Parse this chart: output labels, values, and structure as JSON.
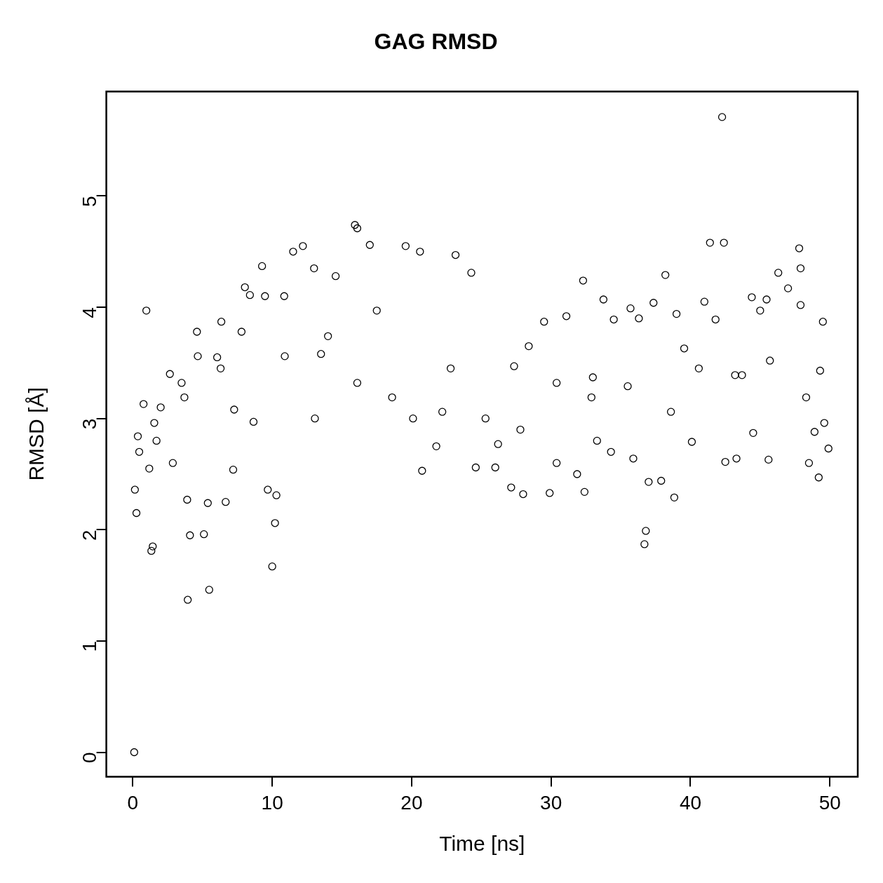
{
  "chart_data": {
    "type": "scatter",
    "title": "GAG RMSD",
    "xlabel": "Time [ns]",
    "ylabel": "RMSD [Å]",
    "xlim": [
      -1.9,
      52
    ],
    "ylim": [
      -0.22,
      5.94
    ],
    "xticks": [
      0,
      10,
      20,
      30,
      40,
      50
    ],
    "yticks": [
      0,
      1,
      2,
      3,
      4,
      5
    ],
    "grid": false,
    "legend": false,
    "marker": "circle",
    "series": [
      {
        "color": "#000000",
        "x": [
          0.1,
          0.15,
          0.26,
          0.36,
          0.46,
          0.77,
          0.97,
          1.33,
          1.43,
          1.18,
          1.54,
          2.0,
          2.66,
          3.5,
          2.87,
          3.94,
          4.1,
          3.9,
          4.6,
          4.66,
          5.1,
          5.48,
          5.38,
          6.05,
          6.35,
          6.66,
          7.27,
          7.2,
          8.04,
          8.4,
          8.66,
          9.27,
          9.48,
          9.68,
          10.0,
          10.2,
          10.3,
          10.86,
          11.5,
          12.2,
          13.0,
          14.55,
          14.0,
          13.06,
          16.1,
          15.93,
          17.0,
          17.5,
          19.57,
          20.6,
          20.75,
          21.77,
          23.15,
          24.28,
          24.6,
          22.8,
          26.0,
          26.2,
          27.14,
          27.35,
          28.0,
          28.4,
          29.5,
          29.9,
          30.4,
          31.1,
          32.3,
          32.4,
          31.87,
          33.0,
          33.3,
          33.76,
          34.5,
          34.3,
          35.7,
          36.3,
          35.9,
          36.7,
          36.8,
          37.0,
          37.35,
          38.2,
          37.9,
          38.84,
          39.0,
          39.55,
          40.1,
          41.0,
          41.4,
          41.8,
          42.27,
          42.4,
          42.5,
          43.2,
          43.3,
          44.4,
          44.5,
          45.0,
          45.46,
          45.6,
          46.3,
          47.0,
          47.8,
          47.9,
          47.9,
          48.5,
          48.9,
          49.2,
          49.3,
          49.5,
          49.6,
          49.9,
          6.3,
          10.9,
          13.5,
          16.1,
          18.6,
          20.1,
          22.2,
          25.3,
          27.8,
          30.4,
          32.9,
          35.5,
          38.6,
          40.6,
          43.7,
          45.7,
          48.3,
          3.7,
          1.7,
          7.8
        ],
        "values": [
          0,
          2.36,
          2.15,
          2.84,
          2.7,
          3.13,
          3.97,
          1.81,
          1.85,
          2.55,
          2.96,
          3.1,
          3.4,
          3.32,
          2.6,
          1.37,
          1.95,
          2.27,
          3.78,
          3.56,
          1.96,
          1.46,
          2.24,
          3.55,
          3.87,
          2.25,
          3.08,
          2.54,
          4.18,
          4.11,
          2.97,
          4.37,
          4.1,
          2.36,
          1.67,
          2.06,
          2.31,
          4.1,
          4.5,
          4.55,
          4.35,
          4.28,
          3.74,
          3.0,
          4.71,
          4.74,
          4.56,
          3.97,
          4.55,
          4.5,
          2.53,
          2.75,
          4.47,
          4.31,
          2.56,
          3.45,
          2.56,
          2.77,
          2.38,
          3.47,
          2.32,
          3.65,
          3.87,
          2.33,
          2.6,
          3.92,
          4.24,
          2.34,
          2.5,
          3.37,
          2.8,
          4.07,
          3.89,
          2.7,
          3.99,
          3.9,
          2.64,
          1.87,
          1.99,
          2.43,
          4.04,
          4.29,
          2.44,
          2.29,
          3.94,
          3.63,
          2.79,
          4.05,
          4.58,
          3.89,
          5.71,
          4.58,
          2.61,
          3.39,
          2.64,
          4.09,
          2.87,
          3.97,
          4.07,
          2.63,
          4.31,
          4.17,
          4.53,
          4.35,
          4.02,
          2.6,
          2.88,
          2.47,
          3.43,
          3.87,
          2.96,
          2.73,
          3.45,
          3.56,
          3.58,
          3.32,
          3.19,
          3.0,
          3.06,
          3.0,
          2.9,
          3.32,
          3.19,
          3.29,
          3.06,
          3.45,
          3.39,
          3.52,
          3.19,
          3.19,
          2.8,
          3.78
        ]
      }
    ]
  }
}
